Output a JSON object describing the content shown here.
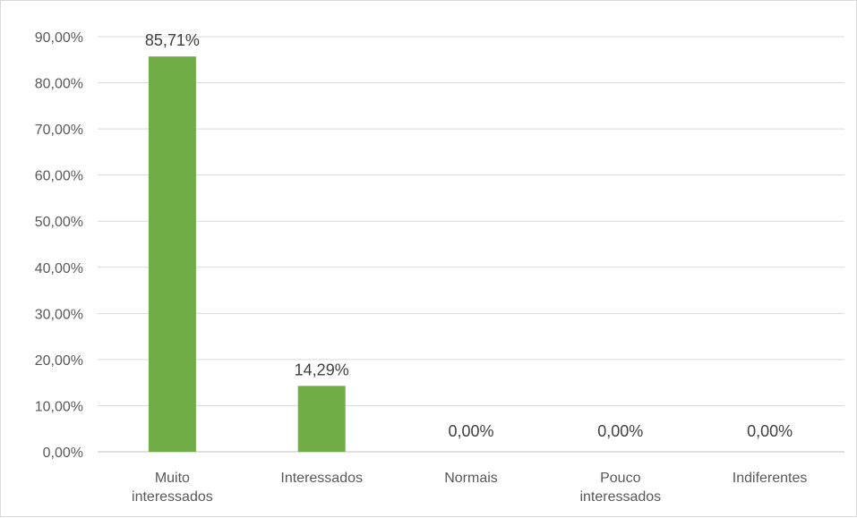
{
  "chart_data": {
    "type": "bar",
    "title": "",
    "xlabel": "",
    "ylabel": "",
    "categories": [
      [
        "Muito",
        "interessados"
      ],
      [
        "Interessados"
      ],
      [
        "Normais"
      ],
      [
        "Pouco",
        "interessados"
      ],
      [
        "Indiferentes"
      ]
    ],
    "values": [
      85.71,
      14.29,
      0,
      0,
      0
    ],
    "data_labels": [
      "85,71%",
      "14,29%",
      "0,00%",
      "0,00%",
      "0,00%"
    ],
    "ylim": [
      0,
      90
    ],
    "yticks": [
      0,
      10,
      20,
      30,
      40,
      50,
      60,
      70,
      80,
      90
    ],
    "ytick_labels": [
      "0,00%",
      "10,00%",
      "20,00%",
      "30,00%",
      "40,00%",
      "50,00%",
      "60,00%",
      "70,00%",
      "80,00%",
      "90,00%"
    ],
    "grid": true,
    "legend": "none",
    "colors": {
      "bar": "#70ad47",
      "grid": "#d9d9d9",
      "text": "#595959",
      "axis": "#bfbfbf"
    }
  }
}
